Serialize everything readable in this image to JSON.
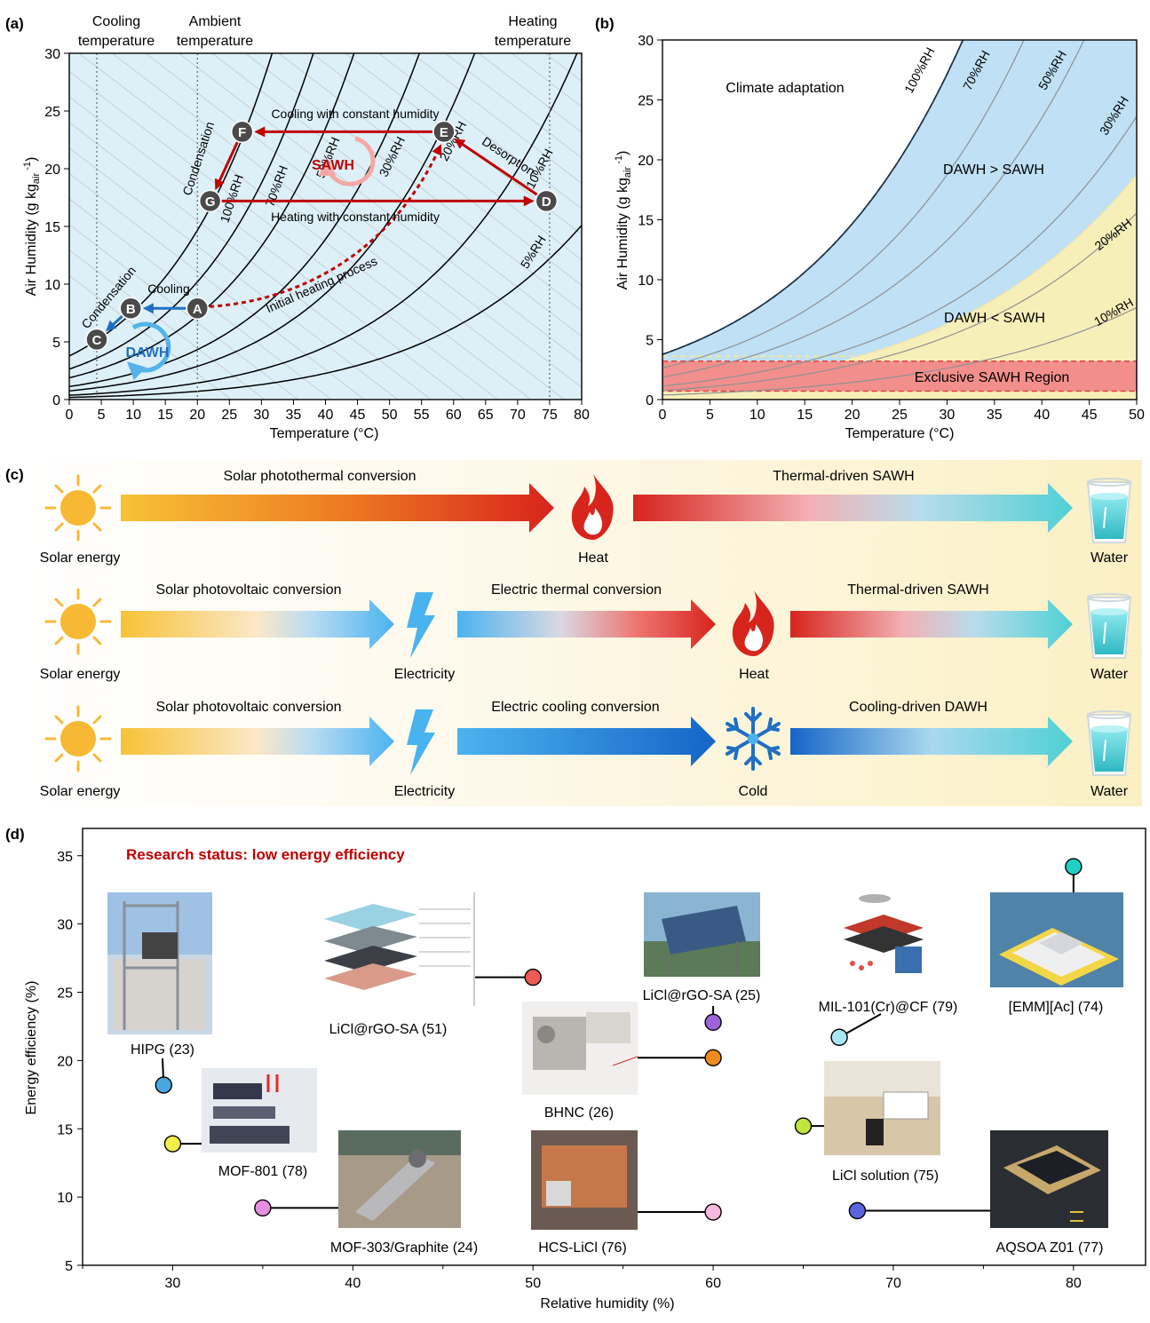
{
  "colors": {
    "red": "#c00000",
    "blue": "#1f6fc4",
    "light_blue": "#bfe0f5",
    "yellow": "#f6efb5",
    "pink": "#f28f8c",
    "sun": "#f7b933",
    "teal": "#5fd4d8"
  },
  "panel_a": {
    "label": "(a)",
    "annotations": {
      "cooling_temp": [
        "Cooling",
        "temperature"
      ],
      "ambient_temp": [
        "Ambient",
        "temperature"
      ],
      "heating_temp": [
        "Heating",
        "temperature"
      ],
      "cooling_const": "Cooling with constant humidity",
      "heating_const": "Heating with constant humidity",
      "sawh": "SAWH",
      "dawh": "DAWH",
      "desorption": "Desorption",
      "condensation_top": "Condensation",
      "condensation_bottom": "Condensation",
      "cooling": "Cooling",
      "initial_heating": "Initial heating process"
    },
    "points": [
      {
        "id": "A",
        "t": 20,
        "w": 7.9
      },
      {
        "id": "B",
        "t": 9.6,
        "w": 7.9
      },
      {
        "id": "C",
        "t": 4.3,
        "w": 5.2
      },
      {
        "id": "D",
        "t": 74.5,
        "w": 17.2
      },
      {
        "id": "E",
        "t": 58.5,
        "w": 23.2
      },
      {
        "id": "F",
        "t": 27,
        "w": 23.2
      },
      {
        "id": "G",
        "t": 22,
        "w": 17.2
      }
    ]
  },
  "panel_b": {
    "label": "(b)",
    "region_labels": {
      "climate": "Climate adaptation",
      "dawh_gt": "DAWH > SAWH",
      "dawh_lt": "DAWH < SAWH",
      "exclusive": "Exclusive SAWH Region"
    }
  },
  "panel_c": {
    "label": "(c)",
    "rows": [
      {
        "source": "Solar energy",
        "arrows": [
          "Solar photothermal conversion",
          "Thermal-driven SAWH"
        ],
        "nodes": [
          "Heat",
          "Water"
        ]
      },
      {
        "source": "Solar energy",
        "arrows": [
          "Solar photovoltaic conversion",
          "Electric thermal conversion",
          "Thermal-driven SAWH"
        ],
        "nodes": [
          "Electricity",
          "Heat",
          "Water"
        ]
      },
      {
        "source": "Solar energy",
        "arrows": [
          "Solar photovoltaic conversion",
          "Electric cooling conversion",
          "Cooling-driven DAWH"
        ],
        "nodes": [
          "Electricity",
          "Cold",
          "Water"
        ]
      }
    ]
  },
  "panel_d": {
    "label": "(d)",
    "headline": "Research status: low energy efficiency"
  },
  "chart_data": [
    {
      "type": "line",
      "title": "",
      "xlabel": "Temperature (°C)",
      "ylabel": "Air Humidity (g kg-air -1)",
      "xlim": [
        0,
        80
      ],
      "ylim": [
        0,
        30
      ],
      "xticks": [
        0,
        5,
        10,
        15,
        20,
        25,
        30,
        35,
        40,
        45,
        50,
        55,
        60,
        65,
        70,
        75,
        80
      ],
      "yticks": [
        0,
        5,
        10,
        15,
        20,
        25,
        30
      ],
      "series": [
        {
          "name": "100%RH",
          "rh": 100
        },
        {
          "name": "70%RH",
          "rh": 70
        },
        {
          "name": "50%RH",
          "rh": 50
        },
        {
          "name": "30%RH",
          "rh": 30
        },
        {
          "name": "20%RH",
          "rh": 20
        },
        {
          "name": "10%RH",
          "rh": 10
        },
        {
          "name": "5%RH",
          "rh": 5
        }
      ],
      "vertical_lines": [
        4.3,
        20,
        75
      ]
    },
    {
      "type": "area",
      "title": "",
      "xlabel": "Temperature (°C)",
      "ylabel": "Air Humidity (g kg-air -1)",
      "xlim": [
        0,
        50
      ],
      "ylim": [
        0,
        30
      ],
      "xticks": [
        0,
        5,
        10,
        15,
        20,
        25,
        30,
        35,
        40,
        45,
        50
      ],
      "yticks": [
        0,
        5,
        10,
        15,
        20,
        25,
        30
      ],
      "series": [
        {
          "name": "100%RH",
          "rh": 100
        },
        {
          "name": "70%RH",
          "rh": 70
        },
        {
          "name": "50%RH",
          "rh": 50
        },
        {
          "name": "30%RH",
          "rh": 30
        },
        {
          "name": "20%RH",
          "rh": 20
        },
        {
          "name": "10%RH",
          "rh": 10
        }
      ],
      "exclusive_band": [
        0.7,
        3.2
      ]
    },
    {
      "type": "scatter",
      "title": "",
      "xlabel": "Relative humidity (%)",
      "ylabel": "Energy efficiency (%)",
      "xlim": [
        25,
        84
      ],
      "ylim": [
        5,
        37
      ],
      "xticks": [
        30,
        40,
        50,
        60,
        70,
        80
      ],
      "yticks": [
        5,
        10,
        15,
        20,
        25,
        30,
        35
      ],
      "points": [
        {
          "label": "HIPG (23)",
          "x": 29.5,
          "y": 18.2,
          "color": "#4aa6e0"
        },
        {
          "label": "MOF-801 (78)",
          "x": 30,
          "y": 13.9,
          "color": "#f3ee4a"
        },
        {
          "label": "MOF-303/Graphite (24)",
          "x": 35,
          "y": 9.2,
          "color": "#e88ee0"
        },
        {
          "label": "LiCl@rGO-SA (51)",
          "x": 50,
          "y": 26.1,
          "color": "#ee5a55"
        },
        {
          "label": "LiCl@rGO-SA (25)",
          "x": 60,
          "y": 22.8,
          "color": "#9d63d8"
        },
        {
          "label": "BHNC (26)",
          "x": 60,
          "y": 20.2,
          "color": "#f08a1f"
        },
        {
          "label": "HCS-LiCl (76)",
          "x": 60,
          "y": 8.9,
          "color": "#f6b8de"
        },
        {
          "label": "MIL-101(Cr)@CF (79)",
          "x": 67,
          "y": 21.7,
          "color": "#a8e7f5"
        },
        {
          "label": "LiCl solution (75)",
          "x": 65,
          "y": 15.2,
          "color": "#bfe53a"
        },
        {
          "label": "AQSOA Z01 (77)",
          "x": 68,
          "y": 9.0,
          "color": "#5a66dd"
        },
        {
          "label": "[EMM][Ac] (74)",
          "x": 80,
          "y": 34.2,
          "color": "#22cfc6"
        }
      ]
    }
  ]
}
